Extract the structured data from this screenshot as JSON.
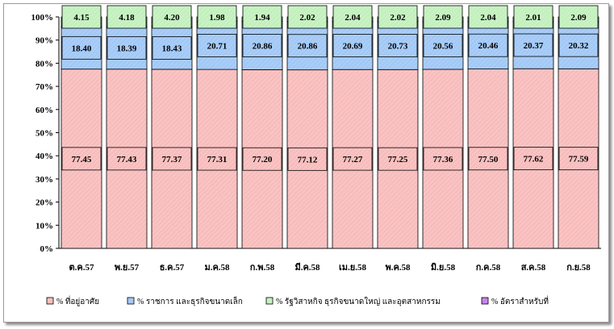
{
  "chart_data": {
    "type": "bar",
    "stacked": true,
    "percent_stacked": true,
    "categories": [
      "ต.ค.57",
      "พ.ย.57",
      "ธ.ค.57",
      "ม.ค.58",
      "ก.พ.58",
      "มี.ค.58",
      "เม.ย.58",
      "พ.ค.58",
      "มิ.ย.58",
      "ก.ค.58",
      "ส.ค.58",
      "ก.ย.58"
    ],
    "series": [
      {
        "name": "% ที่อยู่อาศัย",
        "color": "#f9c3c3",
        "values": [
          77.45,
          77.43,
          77.37,
          77.31,
          77.2,
          77.12,
          77.27,
          77.25,
          77.36,
          77.5,
          77.62,
          77.59
        ],
        "labels": [
          "77.45",
          "77.43",
          "77.37",
          "77.31",
          "77.20",
          "77.12",
          "77.27",
          "77.25",
          "77.36",
          "77.50",
          "77.62",
          "77.59"
        ]
      },
      {
        "name": "% ราชการ และธุรกิจขนาดเล็ก",
        "color": "#a9cdf7",
        "values": [
          18.4,
          18.39,
          18.43,
          20.71,
          20.86,
          20.86,
          20.69,
          20.73,
          20.56,
          20.46,
          20.37,
          20.32
        ],
        "labels": [
          "18.40",
          "18.39",
          "18.43",
          "20.71",
          "20.86",
          "20.86",
          "20.69",
          "20.73",
          "20.56",
          "20.46",
          "20.37",
          "20.32"
        ]
      },
      {
        "name": "% รัฐวิสาหกิจ ธุรกิจขนาดใหญ่ และอุตสาหกรรม",
        "color": "#c9f2c4",
        "values": [
          4.15,
          4.18,
          4.2,
          1.98,
          1.94,
          2.02,
          2.04,
          2.02,
          2.09,
          2.04,
          2.01,
          2.09
        ],
        "labels": [
          "4.15",
          "4.18",
          "4.20",
          "1.98",
          "1.94",
          "2.02",
          "2.04",
          "2.02",
          "2.09",
          "2.04",
          "2.01",
          "2.09"
        ]
      },
      {
        "name": "% อัตราสำหรับที่",
        "color": "#cc88ee",
        "values": [
          0,
          0,
          0,
          0,
          0,
          0,
          0,
          0,
          0,
          0,
          0,
          0
        ]
      }
    ],
    "y_ticks": [
      "0%",
      "10%",
      "20%",
      "30%",
      "40%",
      "50%",
      "60%",
      "70%",
      "80%",
      "90%",
      "100%"
    ],
    "ylim": [
      0,
      100
    ],
    "grid": false,
    "legend_position": "bottom"
  }
}
